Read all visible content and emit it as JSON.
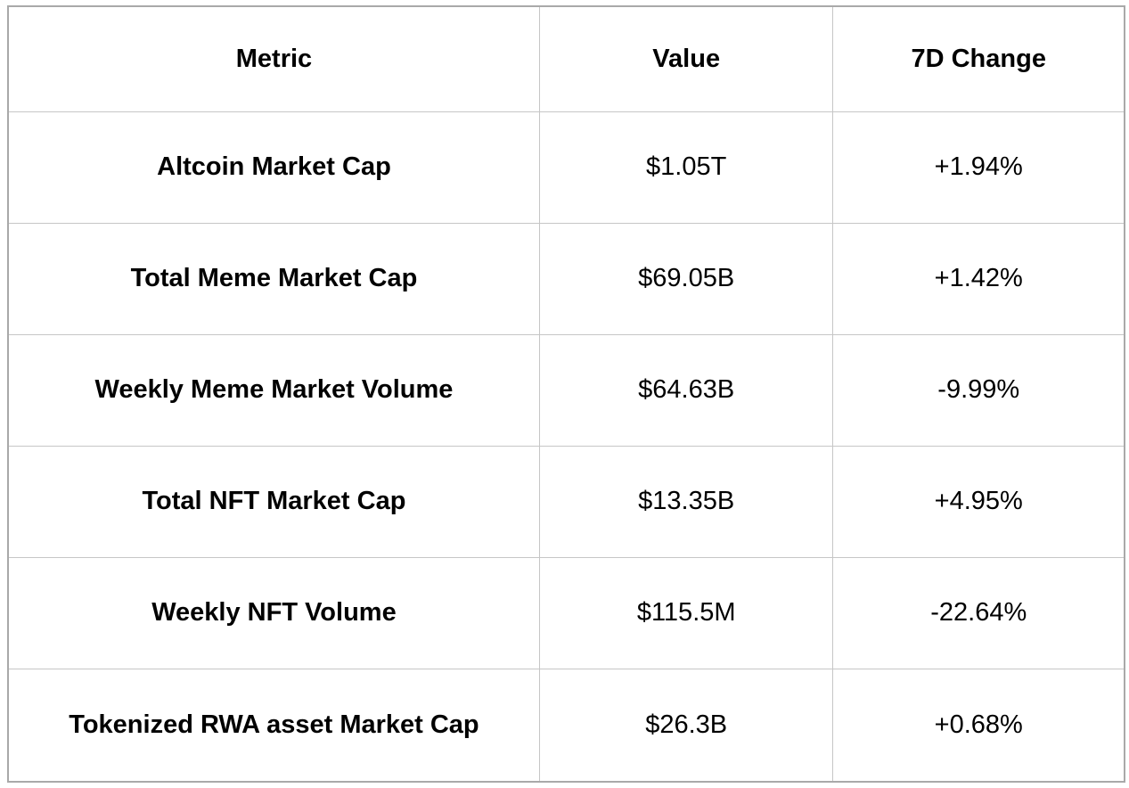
{
  "colors": {
    "background": "#ffffff",
    "text": "#000000",
    "border_outer": "#a9a9a9",
    "border_inner": "#c6c6c6"
  },
  "table": {
    "columns": [
      "Metric",
      "Value",
      "7D Change"
    ],
    "rows": [
      {
        "metric": "Altcoin Market Cap",
        "value": "$1.05T",
        "change": "+1.94%"
      },
      {
        "metric": "Total Meme Market Cap",
        "value": "$69.05B",
        "change": "+1.42%"
      },
      {
        "metric": "Weekly Meme Market Volume",
        "value": "$64.63B",
        "change": "-9.99%"
      },
      {
        "metric": "Total NFT Market Cap",
        "value": "$13.35B",
        "change": "+4.95%"
      },
      {
        "metric": "Weekly NFT Volume",
        "value": "$115.5M",
        "change": "-22.64%"
      },
      {
        "metric": "Tokenized RWA asset Market Cap",
        "value": "$26.3B",
        "change": "+0.68%"
      }
    ]
  },
  "chart_data": {
    "type": "table",
    "columns": [
      "Metric",
      "Value",
      "7D Change"
    ],
    "rows": [
      [
        "Altcoin Market Cap",
        "$1.05T",
        "+1.94%"
      ],
      [
        "Total Meme Market Cap",
        "$69.05B",
        "+1.42%"
      ],
      [
        "Weekly Meme Market Volume",
        "$64.63B",
        "-9.99%"
      ],
      [
        "Total NFT Market Cap",
        "$13.35B",
        "+4.95%"
      ],
      [
        "Weekly NFT Volume",
        "$115.5M",
        "-22.64%"
      ],
      [
        "Tokenized RWA asset Market Cap",
        "$26.3B",
        "+0.68%"
      ]
    ],
    "notes": {
      "values_numeric_usd": [
        1050000000000,
        69050000000,
        64630000000,
        13350000000,
        115500000,
        26300000000
      ],
      "change_7d_percent": [
        1.94,
        1.42,
        -9.99,
        4.95,
        -22.64,
        0.68
      ]
    }
  }
}
